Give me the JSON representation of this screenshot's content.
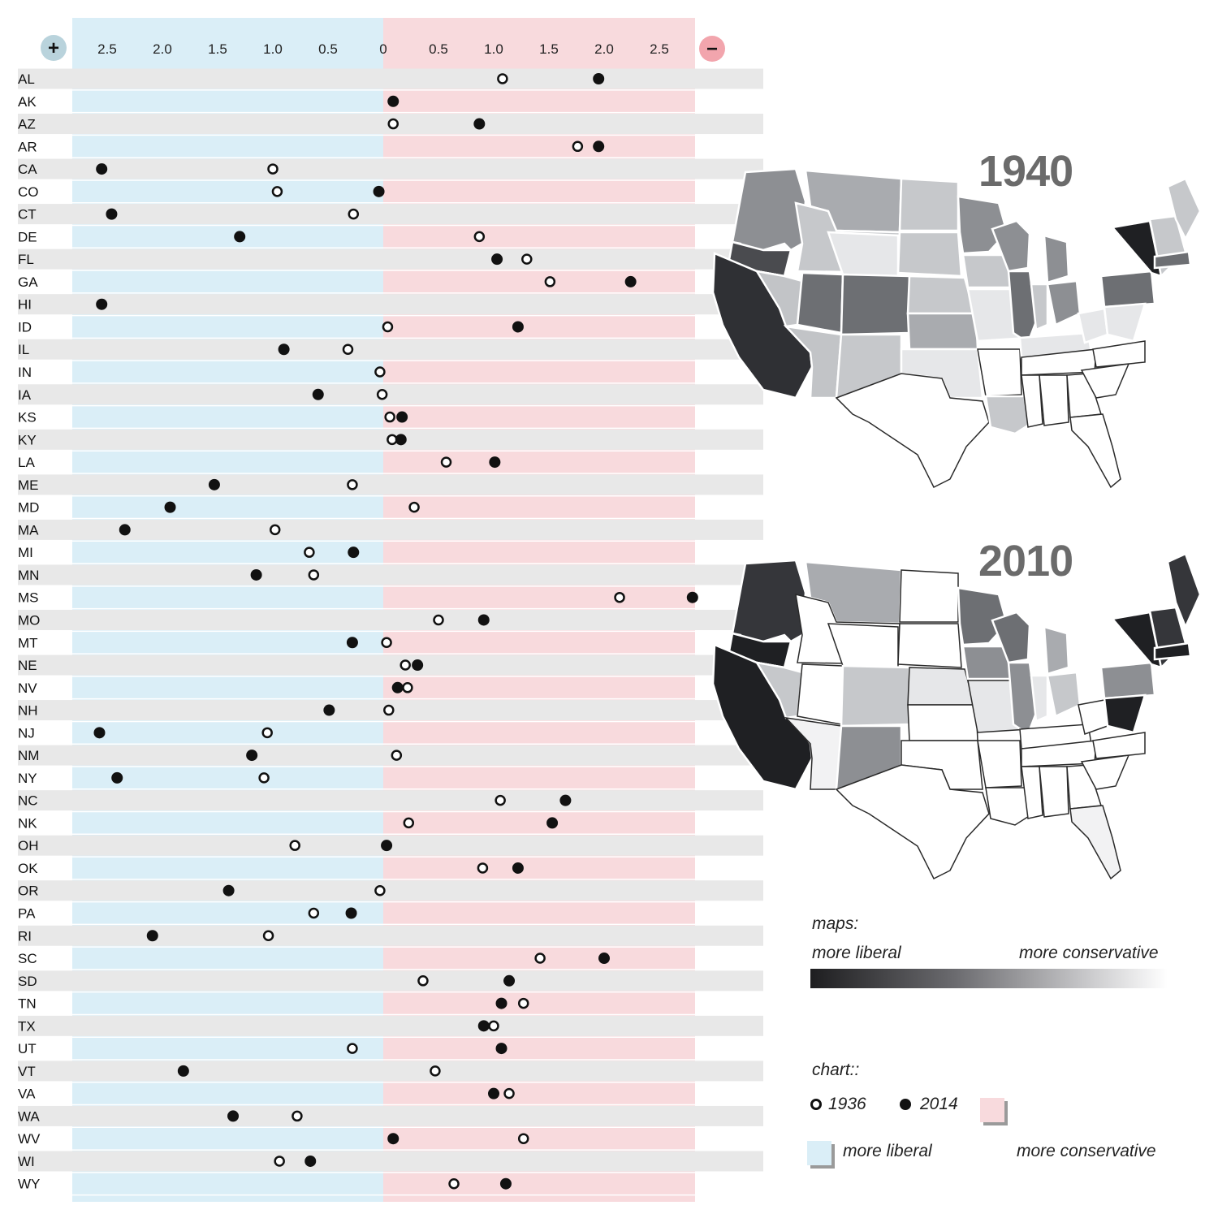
{
  "chart_data": {
    "type": "scatter",
    "xlim": [
      -2.9,
      2.9
    ],
    "x_ticks": [
      {
        "value": -2.5,
        "label": "2.5"
      },
      {
        "value": -2.0,
        "label": "2.0"
      },
      {
        "value": -1.5,
        "label": "1.5"
      },
      {
        "value": -1.0,
        "label": "1.0"
      },
      {
        "value": -0.5,
        "label": "0.5"
      },
      {
        "value": 0,
        "label": "0"
      },
      {
        "value": 0.5,
        "label": "0.5"
      },
      {
        "value": 1.0,
        "label": "1.0"
      },
      {
        "value": 1.5,
        "label": "1.5"
      },
      {
        "value": 2.0,
        "label": "2.0"
      },
      {
        "value": 2.5,
        "label": "2.5"
      }
    ],
    "left_marker": "+",
    "right_marker": "−",
    "categories": [
      "AL",
      "AK",
      "AZ",
      "AR",
      "CA",
      "CO",
      "CT",
      "DE",
      "FL",
      "GA",
      "HI",
      "ID",
      "IL",
      "IN",
      "IA",
      "KS",
      "KY",
      "LA",
      "ME",
      "MD",
      "MA",
      "MI",
      "MN",
      "MS",
      "MO",
      "MT",
      "NE",
      "NV",
      "NH",
      "NJ",
      "NM",
      "NY",
      "NC",
      "NK",
      "OH",
      "OK",
      "OR",
      "PA",
      "RI",
      "SC",
      "SD",
      "TN",
      "TX",
      "UT",
      "VT",
      "VA",
      "WA",
      "WV",
      "WI",
      "WY"
    ],
    "series": [
      {
        "name": "1936",
        "marker": "open",
        "values": [
          1.08,
          null,
          0.09,
          1.76,
          -1.0,
          -0.96,
          -0.27,
          0.87,
          1.3,
          1.51,
          null,
          0.04,
          -0.32,
          -0.03,
          -0.01,
          0.06,
          0.08,
          0.57,
          -0.28,
          0.28,
          -0.98,
          -0.67,
          -0.63,
          2.14,
          0.5,
          0.03,
          0.2,
          0.22,
          0.05,
          -1.05,
          0.12,
          -1.08,
          1.06,
          0.23,
          -0.8,
          0.9,
          -0.03,
          -0.63,
          -1.04,
          1.42,
          0.36,
          1.27,
          1.0,
          -0.28,
          0.47,
          1.14,
          -0.78,
          1.27,
          -0.94,
          0.64
        ]
      },
      {
        "name": "2014",
        "marker": "filled",
        "values": [
          1.95,
          0.09,
          0.87,
          1.95,
          -2.55,
          -0.04,
          -2.46,
          -1.3,
          1.03,
          2.24,
          -2.55,
          1.22,
          -0.9,
          null,
          -0.59,
          0.17,
          0.16,
          1.01,
          -1.53,
          -1.93,
          -2.34,
          -0.27,
          -1.15,
          2.8,
          0.91,
          -0.28,
          0.31,
          0.13,
          -0.49,
          -2.57,
          -1.19,
          -2.41,
          1.65,
          1.53,
          0.03,
          1.22,
          -1.4,
          -0.29,
          -2.09,
          2.0,
          1.14,
          1.07,
          0.91,
          1.07,
          -1.81,
          1.0,
          -1.36,
          0.09,
          -0.66,
          1.11
        ]
      }
    ]
  },
  "maps": {
    "year_top": "1940",
    "year_bottom": "2010"
  },
  "legend": {
    "maps_title": "maps:",
    "maps_left": "more liberal",
    "maps_right": "more conservative",
    "chart_title": "chart::",
    "label_1936": "1936",
    "label_2014": "2014",
    "chart_liberal": "more liberal",
    "chart_conservative": "more conservative"
  },
  "colors": {
    "liberal_band": "#daeef7",
    "conservative_band": "#f8dadd",
    "row_gray": "#e8e8e8",
    "marker": "#111111",
    "plus_circle": "#b9d3dc",
    "minus_circle": "#f2a5ad"
  }
}
